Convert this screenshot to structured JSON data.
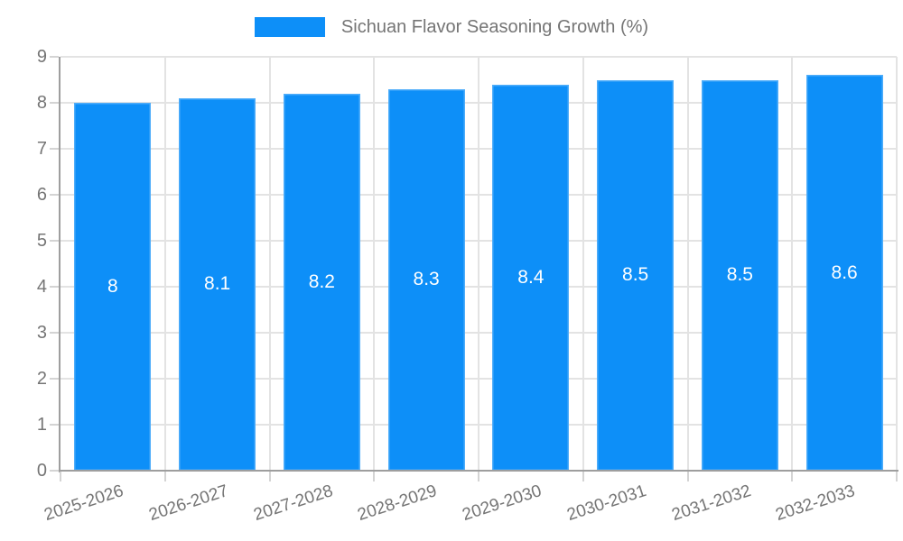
{
  "legend": {
    "label": "Sichuan Flavor Seasoning Growth (%)"
  },
  "chart_data": {
    "type": "bar",
    "title": "",
    "legend_label": "Sichuan Flavor Seasoning Growth (%)",
    "legend_position": "top-center",
    "categories": [
      "2025-2026",
      "2026-2027",
      "2027-2028",
      "2028-2029",
      "2029-2030",
      "2030-2031",
      "2031-2032",
      "2032-2033"
    ],
    "values": [
      8,
      8.1,
      8.2,
      8.3,
      8.4,
      8.5,
      8.5,
      8.6
    ],
    "value_labels": [
      "8",
      "8.1",
      "8.2",
      "8.3",
      "8.4",
      "8.5",
      "8.5",
      "8.6"
    ],
    "xlabel": "",
    "ylabel": "",
    "ylim": [
      0,
      9
    ],
    "ytick_step": 1,
    "yticks": [
      0,
      1,
      2,
      3,
      4,
      5,
      6,
      7,
      8,
      9
    ],
    "grid": true,
    "bar_color": "#0d8ff8",
    "value_label_color": "#ffffff"
  }
}
